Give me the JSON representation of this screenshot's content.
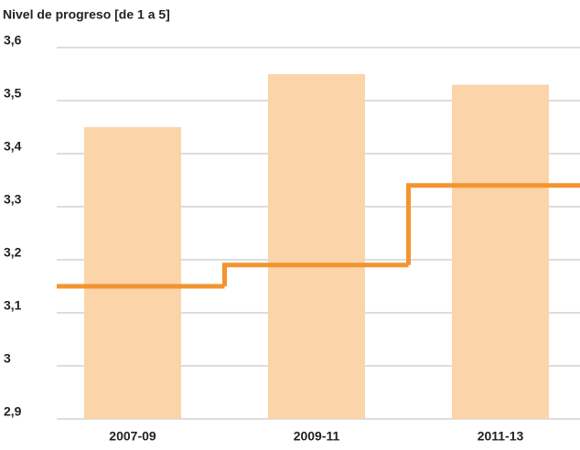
{
  "chart_data": {
    "type": "bar",
    "title": "Nivel de progreso [de 1 a 5]",
    "categories": [
      "2007-09",
      "2009-11",
      "2011-13"
    ],
    "series": [
      {
        "type": "bar",
        "color": "#fbd5a9",
        "values": [
          3.45,
          3.55,
          3.53
        ]
      },
      {
        "type": "step",
        "color": "#f39430",
        "values": [
          3.15,
          3.19,
          3.34
        ]
      }
    ],
    "ylim": [
      2.9,
      3.6
    ],
    "yticks": [
      {
        "value": 2.9,
        "label": "2,9"
      },
      3,
      {
        "value": 3.1,
        "label": "3,1"
      },
      {
        "value": 3.2,
        "label": "3,2"
      },
      {
        "value": 3.3,
        "label": "3,3"
      },
      {
        "value": 3.4,
        "label": "3,4"
      },
      {
        "value": 3.5,
        "label": "3,5"
      },
      {
        "value": 3.6,
        "label": "3,6"
      }
    ],
    "grid": true
  }
}
